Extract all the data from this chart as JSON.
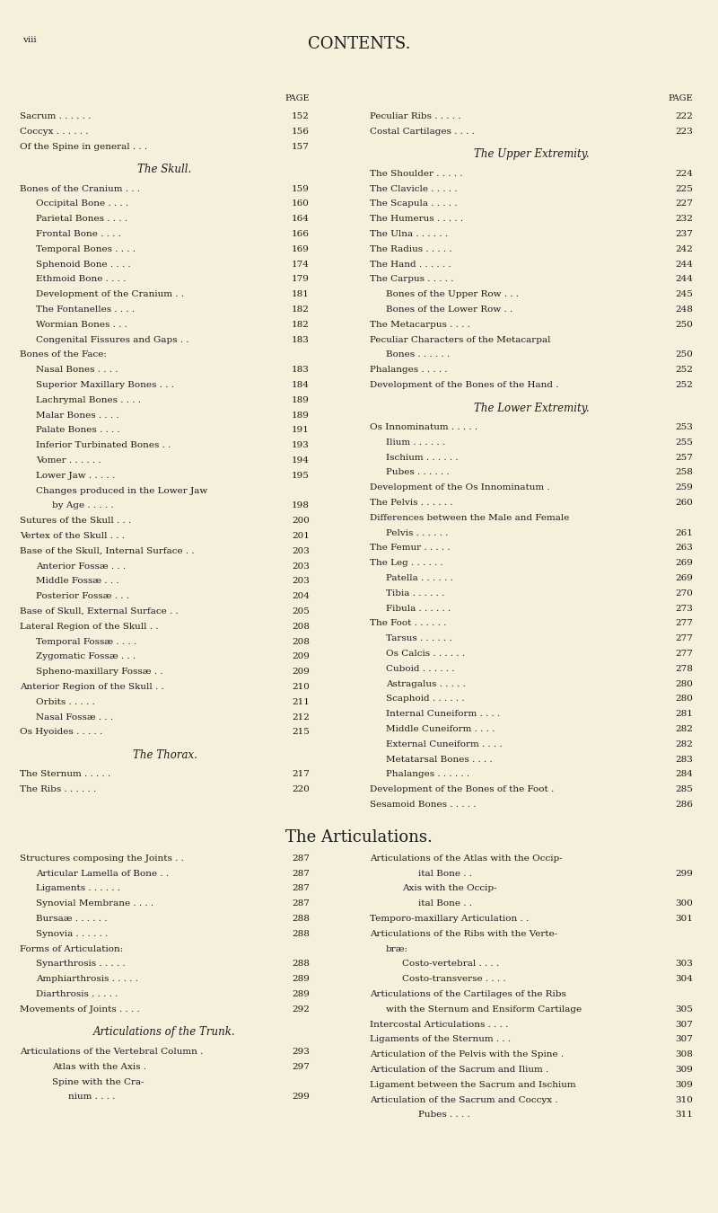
{
  "background_color": "#f5f0dc",
  "page_label": "viii",
  "title": "CONTENTS.",
  "left_entries": [
    {
      "text": "Sacrum . . . . . .",
      "page": "152",
      "indent": 0
    },
    {
      "text": "Coccyx . . . . . .",
      "page": "156",
      "indent": 0
    },
    {
      "text": "Of the Spine in general . . .",
      "page": "157",
      "indent": 0
    },
    {
      "text": "",
      "page": "",
      "indent": 0
    },
    {
      "text": "The Skull.",
      "page": "",
      "indent": 0,
      "italic": true,
      "center": true
    },
    {
      "text": "",
      "page": "",
      "indent": 0
    },
    {
      "text": "Bones of the Cranium . . .",
      "page": "159",
      "indent": 0
    },
    {
      "text": "Occipital Bone . . . .",
      "page": "160",
      "indent": 1
    },
    {
      "text": "Parietal Bones . . . .",
      "page": "164",
      "indent": 1
    },
    {
      "text": "Frontal Bone . . . .",
      "page": "166",
      "indent": 1
    },
    {
      "text": "Temporal Bones . . . .",
      "page": "169",
      "indent": 1
    },
    {
      "text": "Sphenoid Bone . . . .",
      "page": "174",
      "indent": 1
    },
    {
      "text": "Ethmoid Bone . . . .",
      "page": "179",
      "indent": 1
    },
    {
      "text": "Development of the Cranium . .",
      "page": "181",
      "indent": 1
    },
    {
      "text": "The Fontanelles . . . .",
      "page": "182",
      "indent": 1
    },
    {
      "text": "Wormian Bones . . .",
      "page": "182",
      "indent": 1
    },
    {
      "text": "Congenital Fissures and Gaps . .",
      "page": "183",
      "indent": 1
    },
    {
      "text": "Bones of the Face:",
      "page": "",
      "indent": 0
    },
    {
      "text": "Nasal Bones . . . .",
      "page": "183",
      "indent": 1
    },
    {
      "text": "Superior Maxillary Bones . . .",
      "page": "184",
      "indent": 1
    },
    {
      "text": "Lachrymal Bones . . . .",
      "page": "189",
      "indent": 1
    },
    {
      "text": "Malar Bones . . . .",
      "page": "189",
      "indent": 1
    },
    {
      "text": "Palate Bones . . . .",
      "page": "191",
      "indent": 1
    },
    {
      "text": "Inferior Turbinated Bones . .",
      "page": "193",
      "indent": 1
    },
    {
      "text": "Vomer . . . . . .",
      "page": "194",
      "indent": 1
    },
    {
      "text": "Lower Jaw . . . . .",
      "page": "195",
      "indent": 1
    },
    {
      "text": "Changes produced in the Lower Jaw",
      "page": "",
      "indent": 1
    },
    {
      "text": "by Age . . . . .",
      "page": "198",
      "indent": 2
    },
    {
      "text": "Sutures of the Skull . . .",
      "page": "200",
      "indent": 0
    },
    {
      "text": "Vertex of the Skull . . .",
      "page": "201",
      "indent": 0
    },
    {
      "text": "Base of the Skull, Internal Surface . .",
      "page": "203",
      "indent": 0
    },
    {
      "text": "Anterior Fossæ . . .",
      "page": "203",
      "indent": 1
    },
    {
      "text": "Middle Fossæ . . .",
      "page": "203",
      "indent": 1
    },
    {
      "text": "Posterior Fossæ . . .",
      "page": "204",
      "indent": 1
    },
    {
      "text": "Base of Skull, External Surface . .",
      "page": "205",
      "indent": 0
    },
    {
      "text": "Lateral Region of the Skull . .",
      "page": "208",
      "indent": 0
    },
    {
      "text": "Temporal Fossæ . . . .",
      "page": "208",
      "indent": 1
    },
    {
      "text": "Zygomatic Fossæ . . .",
      "page": "209",
      "indent": 1
    },
    {
      "text": "Spheno-maxillary Fossæ . .",
      "page": "209",
      "indent": 1
    },
    {
      "text": "Anterior Region of the Skull . .",
      "page": "210",
      "indent": 0
    },
    {
      "text": "Orbits . . . . .",
      "page": "211",
      "indent": 1
    },
    {
      "text": "Nasal Fossæ . . .",
      "page": "212",
      "indent": 1
    },
    {
      "text": "Os Hyoides . . . . .",
      "page": "215",
      "indent": 0
    },
    {
      "text": "",
      "page": "",
      "indent": 0
    },
    {
      "text": "The Thorax.",
      "page": "",
      "indent": 0,
      "italic": true,
      "center": true
    },
    {
      "text": "",
      "page": "",
      "indent": 0
    },
    {
      "text": "The Sternum . . . . .",
      "page": "217",
      "indent": 0
    },
    {
      "text": "The Ribs . . . . . .",
      "page": "220",
      "indent": 0
    }
  ],
  "right_entries": [
    {
      "text": "Peculiar Ribs . . . . .",
      "page": "222",
      "indent": 0
    },
    {
      "text": "Costal Cartilages . . . .",
      "page": "223",
      "indent": 0
    },
    {
      "text": "",
      "page": "",
      "indent": 0
    },
    {
      "text": "The Upper Extremity.",
      "page": "",
      "indent": 0,
      "italic": true,
      "center": true
    },
    {
      "text": "",
      "page": "",
      "indent": 0
    },
    {
      "text": "The Shoulder . . . . .",
      "page": "224",
      "indent": 0
    },
    {
      "text": "The Clavicle . . . . .",
      "page": "225",
      "indent": 0
    },
    {
      "text": "The Scapula . . . . .",
      "page": "227",
      "indent": 0
    },
    {
      "text": "The Humerus . . . . .",
      "page": "232",
      "indent": 0
    },
    {
      "text": "The Ulna . . . . . .",
      "page": "237",
      "indent": 0
    },
    {
      "text": "The Radius . . . . .",
      "page": "242",
      "indent": 0
    },
    {
      "text": "The Hand . . . . . .",
      "page": "244",
      "indent": 0
    },
    {
      "text": "The Carpus . . . . .",
      "page": "244",
      "indent": 0
    },
    {
      "text": "Bones of the Upper Row . . .",
      "page": "245",
      "indent": 1
    },
    {
      "text": "Bones of the Lower Row . .",
      "page": "248",
      "indent": 1
    },
    {
      "text": "The Metacarpus . . . .",
      "page": "250",
      "indent": 0
    },
    {
      "text": "Peculiar Characters of the Metacarpal",
      "page": "",
      "indent": 0
    },
    {
      "text": "Bones . . . . . .",
      "page": "250",
      "indent": 1
    },
    {
      "text": "Phalanges . . . . .",
      "page": "252",
      "indent": 0
    },
    {
      "text": "Development of the Bones of the Hand .",
      "page": "252",
      "indent": 0
    },
    {
      "text": "",
      "page": "",
      "indent": 0
    },
    {
      "text": "The Lower Extremity.",
      "page": "",
      "indent": 0,
      "italic": true,
      "center": true
    },
    {
      "text": "",
      "page": "",
      "indent": 0
    },
    {
      "text": "Os Innominatum . . . . .",
      "page": "253",
      "indent": 0
    },
    {
      "text": "Ilium . . . . . .",
      "page": "255",
      "indent": 1
    },
    {
      "text": "Ischium . . . . . .",
      "page": "257",
      "indent": 1
    },
    {
      "text": "Pubes . . . . . .",
      "page": "258",
      "indent": 1
    },
    {
      "text": "Development of the Os Innominatum .",
      "page": "259",
      "indent": 0
    },
    {
      "text": "The Pelvis . . . . . .",
      "page": "260",
      "indent": 0
    },
    {
      "text": "Differences between the Male and Female",
      "page": "",
      "indent": 0
    },
    {
      "text": "Pelvis . . . . . .",
      "page": "261",
      "indent": 1
    },
    {
      "text": "The Femur . . . . .",
      "page": "263",
      "indent": 0
    },
    {
      "text": "The Leg . . . . . .",
      "page": "269",
      "indent": 0
    },
    {
      "text": "Patella . . . . . .",
      "page": "269",
      "indent": 1
    },
    {
      "text": "Tibia . . . . . .",
      "page": "270",
      "indent": 1
    },
    {
      "text": "Fibula . . . . . .",
      "page": "273",
      "indent": 1
    },
    {
      "text": "The Foot . . . . . .",
      "page": "277",
      "indent": 0
    },
    {
      "text": "Tarsus . . . . . .",
      "page": "277",
      "indent": 1
    },
    {
      "text": "Os Calcis . . . . . .",
      "page": "277",
      "indent": 1
    },
    {
      "text": "Cuboid . . . . . .",
      "page": "278",
      "indent": 1
    },
    {
      "text": "Astragalus . . . . .",
      "page": "280",
      "indent": 1
    },
    {
      "text": "Scaphoid . . . . . .",
      "page": "280",
      "indent": 1
    },
    {
      "text": "Internal Cuneiform . . . .",
      "page": "281",
      "indent": 1
    },
    {
      "text": "Middle Cuneiform . . . .",
      "page": "282",
      "indent": 1
    },
    {
      "text": "External Cuneiform . . . .",
      "page": "282",
      "indent": 1
    },
    {
      "text": "Metatarsal Bones . . . .",
      "page": "283",
      "indent": 1
    },
    {
      "text": "Phalanges . . . . . .",
      "page": "284",
      "indent": 1
    },
    {
      "text": "Development of the Bones of the Foot .",
      "page": "285",
      "indent": 0
    },
    {
      "text": "Sesamoid Bones . . . . .",
      "page": "286",
      "indent": 0
    }
  ],
  "articulations_title": "The Articulations.",
  "art_left": [
    {
      "text": "Structures composing the Joints . .",
      "page": "287",
      "indent": 0
    },
    {
      "text": "Articular Lamella of Bone . .",
      "page": "287",
      "indent": 1
    },
    {
      "text": "Ligaments . . . . . .",
      "page": "287",
      "indent": 1
    },
    {
      "text": "Synovial Membrane . . . .",
      "page": "287",
      "indent": 1
    },
    {
      "text": "Bursaæ . . . . . .",
      "page": "288",
      "indent": 1
    },
    {
      "text": "Synovia . . . . . .",
      "page": "288",
      "indent": 1
    },
    {
      "text": "Forms of Articulation:",
      "page": "",
      "indent": 0
    },
    {
      "text": "Synarthrosis . . . . .",
      "page": "288",
      "indent": 1
    },
    {
      "text": "Amphiarthrosis . . . . .",
      "page": "289",
      "indent": 1
    },
    {
      "text": "Diarthrosis . . . . .",
      "page": "289",
      "indent": 1
    },
    {
      "text": "Movements of Joints . . . .",
      "page": "292",
      "indent": 0
    },
    {
      "text": "",
      "page": "",
      "indent": 0
    },
    {
      "text": "Articulations of the Trunk.",
      "page": "",
      "indent": 0,
      "italic": true,
      "center": true
    },
    {
      "text": "",
      "page": "",
      "indent": 0
    },
    {
      "text": "Articulations of the Vertebral Column .",
      "page": "293",
      "indent": 0
    },
    {
      "text": "Atlas with the Axis .",
      "page": "297",
      "indent": 2
    },
    {
      "text": "Spine with the Cra-",
      "page": "",
      "indent": 2
    },
    {
      "text": "nium . . . .",
      "page": "299",
      "indent": 3
    }
  ],
  "art_right": [
    {
      "text": "Articulations of the Atlas with the Occip-",
      "page": "",
      "indent": 0
    },
    {
      "text": "ital Bone . .",
      "page": "299",
      "indent": 3
    },
    {
      "text": "Axis with the Occip-",
      "page": "",
      "indent": 2
    },
    {
      "text": "ital Bone . .",
      "page": "300",
      "indent": 3
    },
    {
      "text": "Temporo-maxillary Articulation . .",
      "page": "301",
      "indent": 0
    },
    {
      "text": "Articulations of the Ribs with the Verte-",
      "page": "",
      "indent": 0
    },
    {
      "text": "bræ:",
      "page": "",
      "indent": 1
    },
    {
      "text": "Costo-vertebral . . . .",
      "page": "303",
      "indent": 2
    },
    {
      "text": "Costo-transverse . . . .",
      "page": "304",
      "indent": 2
    },
    {
      "text": "Articulations of the Cartilages of the Ribs",
      "page": "",
      "indent": 0
    },
    {
      "text": "with the Sternum and Ensiform Cartilage",
      "page": "305",
      "indent": 1
    },
    {
      "text": "Intercostal Articulations . . . .",
      "page": "307",
      "indent": 0
    },
    {
      "text": "Ligaments of the Sternum . . .",
      "page": "307",
      "indent": 0
    },
    {
      "text": "Articulation of the Pelvis with the Spine .",
      "page": "308",
      "indent": 0
    },
    {
      "text": "Articulation of the Sacrum and Ilium .",
      "page": "309",
      "indent": 0
    },
    {
      "text": "Ligament between the Sacrum and Ischium",
      "page": "309",
      "indent": 0
    },
    {
      "text": "Articulation of the Sacrum and Coccyx .",
      "page": "310",
      "indent": 0
    },
    {
      "text": "Pubes . . . .",
      "page": "311",
      "indent": 3
    }
  ]
}
